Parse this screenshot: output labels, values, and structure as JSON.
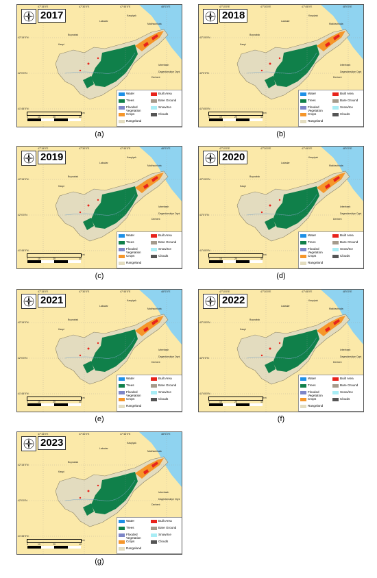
{
  "panels": [
    {
      "year": "2017",
      "caption": "(a)"
    },
    {
      "year": "2018",
      "caption": "(b)"
    },
    {
      "year": "2019",
      "caption": "(c)"
    },
    {
      "year": "2020",
      "caption": "(d)"
    },
    {
      "year": "2021",
      "caption": "(e)"
    },
    {
      "year": "2022",
      "caption": "(f)"
    },
    {
      "year": "2023",
      "caption": "(g)"
    }
  ],
  "legend": [
    {
      "label": "Water",
      "color": "#1e90e6"
    },
    {
      "label": "Built Area",
      "color": "#e8231b"
    },
    {
      "label": "Trees",
      "color": "#10804a"
    },
    {
      "label": "Bare Ground",
      "color": "#a59b8c"
    },
    {
      "label": "Flooded Vegetation",
      "color": "#7d86c8"
    },
    {
      "label": "Snow/Ice",
      "color": "#a9edf5"
    },
    {
      "label": "Crops",
      "color": "#f5962a"
    },
    {
      "label": "Clouds",
      "color": "#555555"
    },
    {
      "label": "Rangeland",
      "color": "#e3dcbf"
    }
  ],
  "top_ticks": [
    "47°15'0\"E",
    "47°30'0\"E",
    "47°45'0\"E",
    "48°0'0\"E"
  ],
  "left_ticks": [
    "42°15'0\"N",
    "42°0'0\"N",
    "41°45'0\"N"
  ],
  "scale_labels": [
    "0",
    "10",
    "20",
    "40"
  ],
  "scale_unit": "km",
  "place_labels": [
    "Lakadar",
    "Kaspiysk",
    "Makhachkala",
    "Buynaksk",
    "Izberbash",
    "Dagestanskiye Ogni",
    "Derbent",
    "Khuchni",
    "Kaspi"
  ]
}
